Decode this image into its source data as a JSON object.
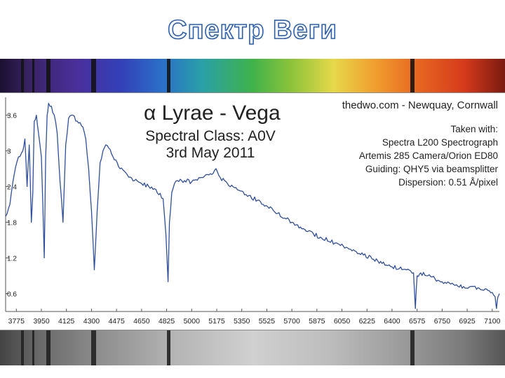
{
  "slide": {
    "title": "Спектр Веги"
  },
  "colors": {
    "title_outline": "#2b5fb0",
    "series": "#2f4f9e"
  },
  "chart_data": {
    "type": "line",
    "title_lines": [
      "α Lyrae - Vega",
      "Spectral Class: A0V",
      "3rd May 2011"
    ],
    "info": {
      "site": "thedwo.com - Newquay, Cornwall",
      "lines": [
        "Taken with:",
        "Spectra L200 Spectrograph",
        "Artemis 285 Camera/Orion ED80",
        "Guiding: QHY5 via beamsplitter",
        "Dispersion: 0.51 Å/pixel"
      ]
    },
    "xlim": [
      3700,
      7150
    ],
    "ylim": [
      0.3,
      3.9
    ],
    "x_ticks": [
      3775,
      3950,
      4125,
      4300,
      4475,
      4650,
      4825,
      5000,
      5175,
      5350,
      5525,
      5700,
      5875,
      6050,
      6225,
      6400,
      6575,
      6750,
      6925,
      7100
    ],
    "y_ticks": [
      0.6,
      1.2,
      1.8,
      2.4,
      3,
      3.6
    ],
    "y_tick_labels": [
      "0.6",
      "1.2",
      "1.8",
      "2.4",
      "3",
      "3.6"
    ],
    "grid": false,
    "series": [
      {
        "x": [
          3700,
          3730,
          3760,
          3790,
          3820,
          3835,
          3850,
          3865,
          3880,
          3890,
          3900,
          3915,
          3930,
          3950,
          3970,
          3980,
          3990,
          4000,
          4020,
          4040,
          4060,
          4080,
          4101,
          4120,
          4140,
          4160,
          4200,
          4240,
          4260,
          4280,
          4300,
          4320,
          4340,
          4360,
          4380,
          4400,
          4420,
          4440,
          4460,
          4480,
          4500,
          4550,
          4600,
          4650,
          4700,
          4750,
          4800,
          4820,
          4835,
          4845,
          4861,
          4880,
          4900,
          4950,
          5000,
          5050,
          5100,
          5150,
          5170,
          5200,
          5250,
          5300,
          5400,
          5500,
          5600,
          5700,
          5800,
          5900,
          6000,
          6100,
          6200,
          6300,
          6400,
          6450,
          6500,
          6530,
          6550,
          6563,
          6575,
          6600,
          6650,
          6700,
          6750,
          6800,
          6850,
          6900,
          6950,
          7000,
          7050,
          7100,
          7120,
          7130,
          7140,
          7150
        ],
        "y": [
          1.9,
          2.1,
          2.6,
          2.9,
          3.0,
          3.2,
          2.4,
          3.1,
          1.8,
          2.3,
          3.5,
          3.6,
          3.3,
          2.9,
          1.2,
          2.9,
          3.6,
          3.8,
          3.75,
          3.6,
          3.3,
          2.5,
          1.8,
          3.1,
          3.55,
          3.6,
          3.5,
          3.4,
          3.2,
          2.7,
          2.0,
          1.0,
          2.0,
          2.8,
          3.0,
          3.1,
          3.05,
          2.95,
          2.85,
          2.8,
          2.7,
          2.6,
          2.5,
          2.45,
          2.4,
          2.35,
          2.2,
          1.6,
          0.8,
          1.8,
          2.3,
          2.45,
          2.5,
          2.5,
          2.48,
          2.55,
          2.6,
          2.62,
          2.7,
          2.55,
          2.45,
          2.38,
          2.25,
          2.1,
          1.95,
          1.8,
          1.65,
          1.55,
          1.45,
          1.35,
          1.25,
          1.15,
          1.05,
          1.02,
          1.0,
          0.98,
          0.95,
          0.35,
          0.9,
          0.95,
          0.9,
          0.85,
          0.8,
          0.78,
          0.75,
          0.72,
          0.72,
          0.7,
          0.68,
          0.62,
          0.55,
          0.35,
          0.55,
          0.6
        ]
      }
    ]
  }
}
